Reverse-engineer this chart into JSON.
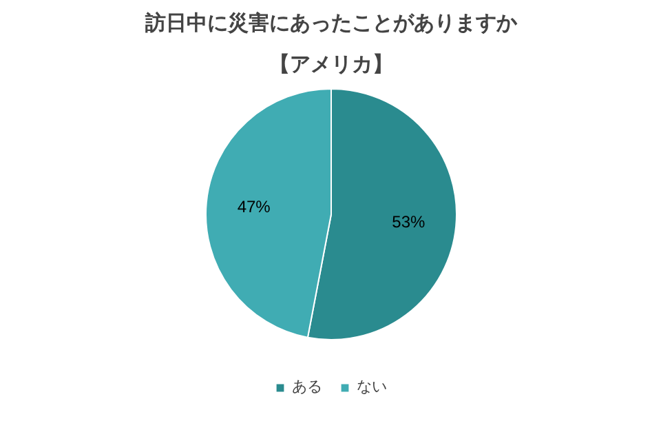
{
  "chart_data": {
    "type": "pie",
    "title": "訪日中に災害にあったことがありますか",
    "subtitle": "【アメリカ】",
    "categories": [
      "ある",
      "ない"
    ],
    "values": [
      53,
      47
    ],
    "colors": [
      "#2a8b8f",
      "#40acb3"
    ],
    "value_labels": [
      "53%",
      "47%"
    ],
    "legend": "bottom"
  }
}
